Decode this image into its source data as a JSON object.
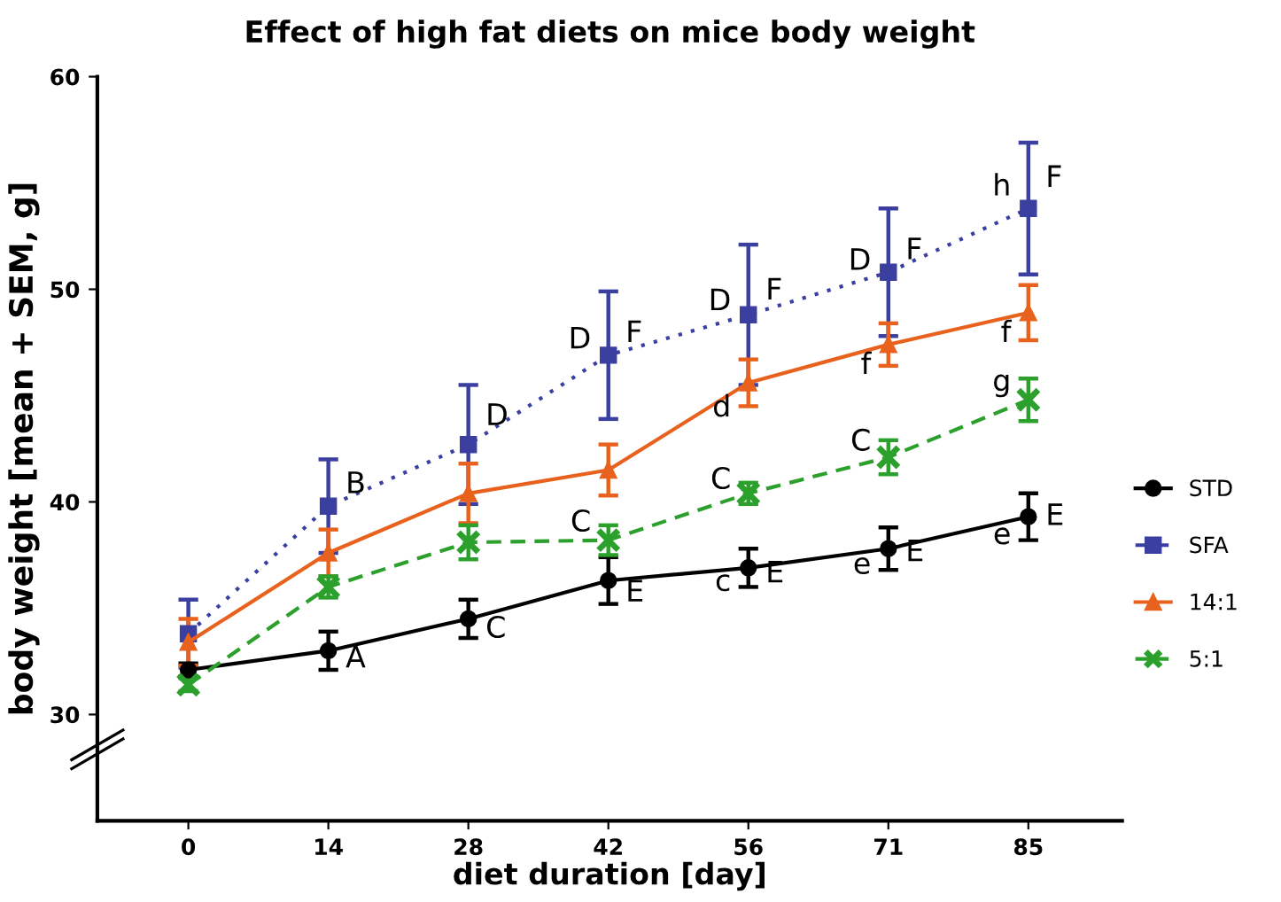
{
  "chart_data": {
    "type": "line",
    "title": "Effect of high fat diets on mice body weight",
    "xlabel": "diet duration [day]",
    "ylabel": "body weight [mean + SEM, g]",
    "categories": [
      "0",
      "14",
      "28",
      "42",
      "56",
      "71",
      "85"
    ],
    "ylim": [
      25,
      60
    ],
    "yticks": [
      30,
      40,
      50,
      60
    ],
    "grid": false,
    "legend": "right",
    "series": [
      {
        "name": "STD",
        "color": "#000000",
        "marker": "circle",
        "line_style": "solid",
        "values": [
          32.1,
          33.0,
          34.5,
          36.3,
          36.9,
          37.8,
          39.3
        ],
        "errors": [
          0.3,
          0.9,
          0.9,
          1.1,
          0.9,
          1.0,
          1.1
        ]
      },
      {
        "name": "SFA",
        "color": "#3a3fa0",
        "marker": "square",
        "line_style": "dotted",
        "values": [
          33.8,
          39.8,
          42.7,
          46.9,
          48.8,
          50.8,
          53.8
        ],
        "errors": [
          1.6,
          2.2,
          2.8,
          3.0,
          3.3,
          3.0,
          3.1
        ]
      },
      {
        "name": "14:1",
        "color": "#e8621e",
        "marker": "triangle",
        "line_style": "solid",
        "values": [
          33.4,
          37.6,
          40.4,
          41.5,
          45.6,
          47.4,
          48.9
        ],
        "errors": [
          1.1,
          1.1,
          1.4,
          1.2,
          1.1,
          1.0,
          1.3
        ]
      },
      {
        "name": "5:1",
        "color": "#2ca02c",
        "marker": "cross",
        "line_style": "dashed",
        "values": [
          31.4,
          36.0,
          38.1,
          38.2,
          40.4,
          42.1,
          44.8
        ],
        "errors": [
          0.3,
          0.5,
          0.8,
          0.7,
          0.5,
          0.8,
          1.0
        ]
      }
    ],
    "annotations": [
      {
        "text": "A",
        "x": "14",
        "y": 32.6
      },
      {
        "text": "C",
        "x": "28",
        "y": 34.0
      },
      {
        "text": "E",
        "x": "42",
        "y": 35.7
      },
      {
        "text": "c",
        "x": "56",
        "y": 36.2
      },
      {
        "text": "E",
        "x": "56",
        "y": 36.6
      },
      {
        "text": "e",
        "x": "71",
        "y": 37.0
      },
      {
        "text": "E",
        "x": "71",
        "y": 37.6
      },
      {
        "text": "e",
        "x": "85",
        "y": 38.4
      },
      {
        "text": "E",
        "x": "85",
        "y": 39.3
      },
      {
        "text": "B",
        "x": "14",
        "y": 40.8
      },
      {
        "text": "D",
        "x": "28",
        "y": 44.0
      },
      {
        "text": "D",
        "x": "42",
        "y": 47.6
      },
      {
        "text": "F",
        "x": "42",
        "y": 47.9
      },
      {
        "text": "D",
        "x": "56",
        "y": 49.4
      },
      {
        "text": "F",
        "x": "56",
        "y": 49.9
      },
      {
        "text": "D",
        "x": "71",
        "y": 51.3
      },
      {
        "text": "F",
        "x": "71",
        "y": 51.8
      },
      {
        "text": "h",
        "x": "85",
        "y": 54.8
      },
      {
        "text": "F",
        "x": "85",
        "y": 55.2
      },
      {
        "text": "d",
        "x": "56",
        "y": 44.4
      },
      {
        "text": "f",
        "x": "71",
        "y": 46.4
      },
      {
        "text": "f",
        "x": "85",
        "y": 47.9
      },
      {
        "text": "C",
        "x": "42",
        "y": 39.0
      },
      {
        "text": "C",
        "x": "56",
        "y": 41.0
      },
      {
        "text": "C",
        "x": "71",
        "y": 42.8
      },
      {
        "text": "g",
        "x": "85",
        "y": 45.6
      }
    ]
  }
}
